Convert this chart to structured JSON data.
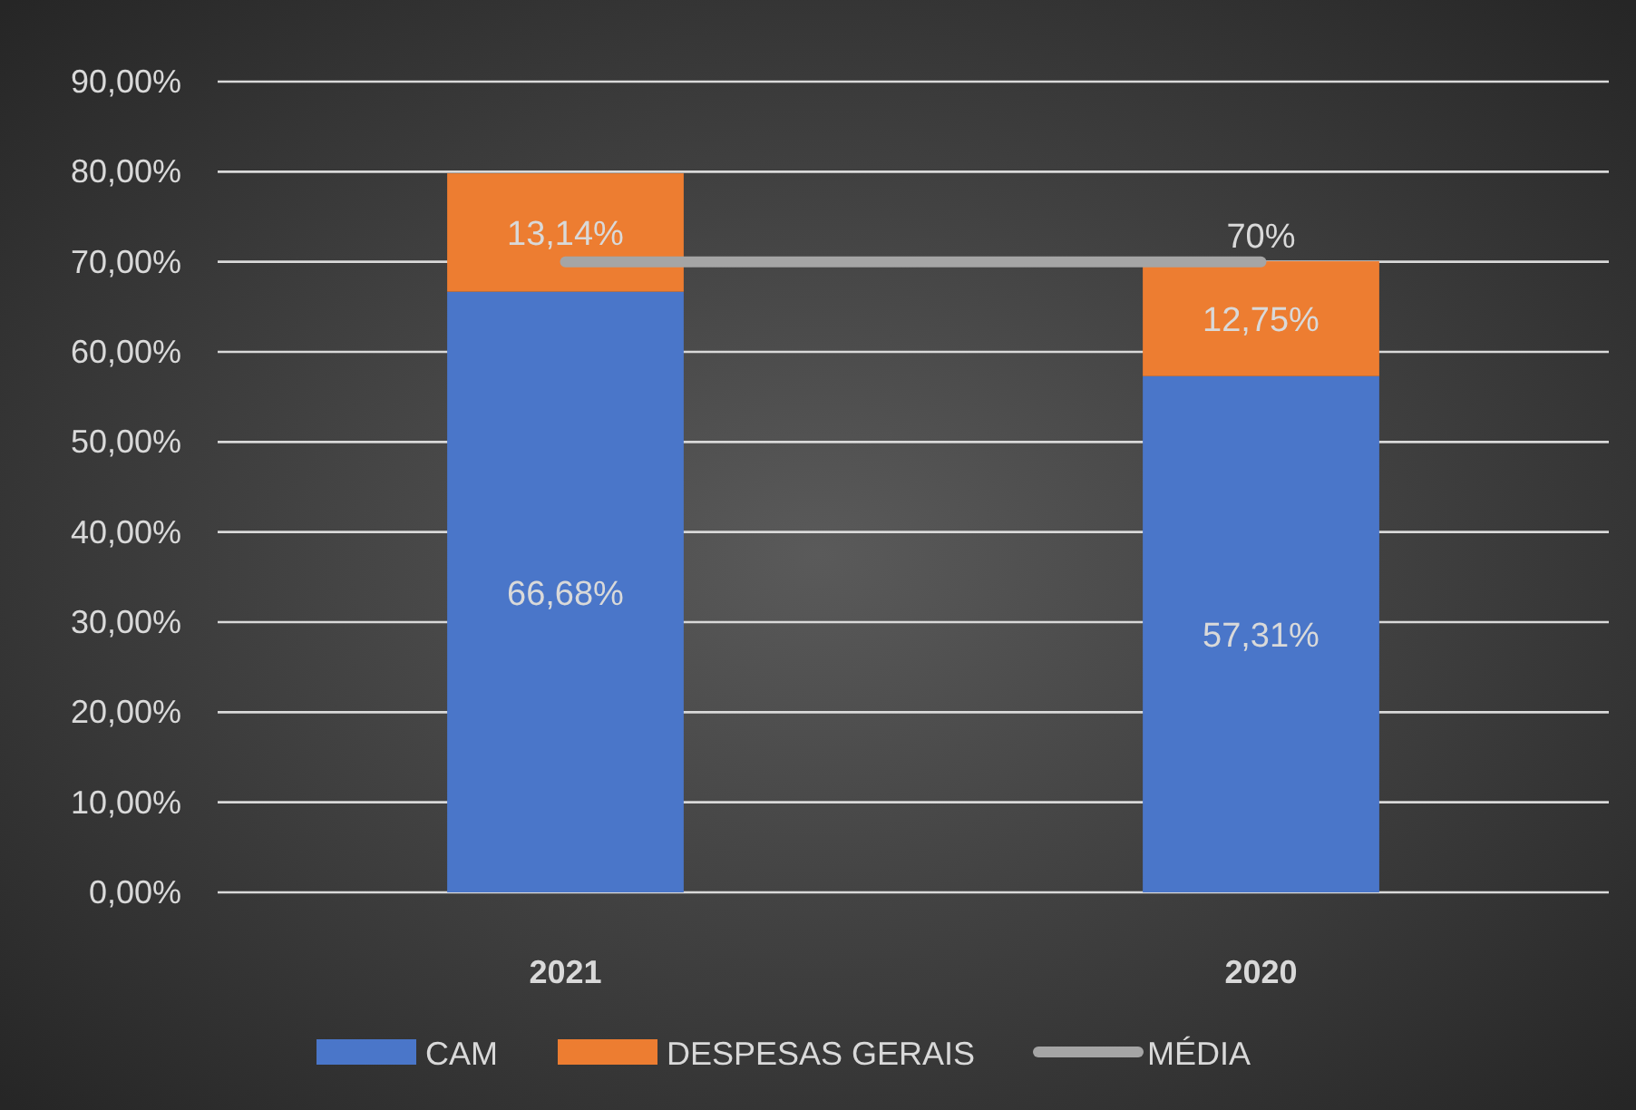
{
  "chart_data": {
    "type": "bar",
    "stacked": true,
    "categories": [
      "2021",
      "2020"
    ],
    "series": [
      {
        "name": "CAM",
        "color": "#4a76c9",
        "values": [
          66.68,
          57.31
        ],
        "value_labels": [
          "66,68%",
          "57,31%"
        ]
      },
      {
        "name": "DESPESAS GERAIS",
        "color": "#ed7d31",
        "values": [
          13.14,
          12.75
        ],
        "value_labels": [
          "13,14%",
          "12,75%"
        ]
      },
      {
        "name": "MÉDIA",
        "type": "line",
        "color": "#a5a5a5",
        "values": [
          70,
          70
        ],
        "value_labels": [
          null,
          "70%"
        ]
      }
    ],
    "ylim": [
      0,
      90
    ],
    "yticks": [
      {
        "value": 0,
        "label": "0,00%"
      },
      {
        "value": 10,
        "label": "10,00%"
      },
      {
        "value": 20,
        "label": "20,00%"
      },
      {
        "value": 30,
        "label": "30,00%"
      },
      {
        "value": 40,
        "label": "40,00%"
      },
      {
        "value": 50,
        "label": "50,00%"
      },
      {
        "value": 60,
        "label": "60,00%"
      },
      {
        "value": 70,
        "label": "70,00%"
      },
      {
        "value": 80,
        "label": "80,00%"
      },
      {
        "value": 90,
        "label": "90,00%"
      }
    ],
    "grid": "y",
    "legend": "bottom"
  }
}
